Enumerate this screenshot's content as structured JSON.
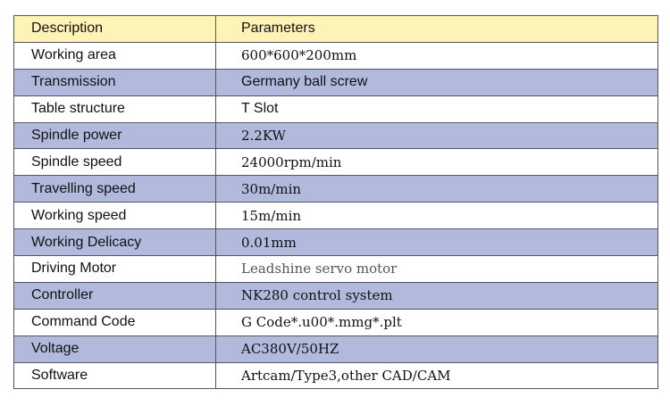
{
  "table": {
    "header": [
      "Description",
      "Parameters"
    ],
    "rows": [
      [
        "Working area",
        "600*600*200mm"
      ],
      [
        "Transmission",
        "Germany ball screw"
      ],
      [
        "Table structure",
        "T Slot"
      ],
      [
        "Spindle power",
        "2.2KW"
      ],
      [
        "Spindle speed",
        "24000rpm/min"
      ],
      [
        "Travelling speed",
        "30m/min"
      ],
      [
        "Working speed",
        "15m/min"
      ],
      [
        "Working Delicacy",
        "0.01mm"
      ],
      [
        "Driving Motor",
        "Leadshine servo motor"
      ],
      [
        "Controller",
        "NK280 control system"
      ],
      [
        "Command Code",
        "G Code*.u00*.mmg*.plt"
      ],
      [
        "Voltage",
        "AC380V/50HZ"
      ],
      [
        "Software",
        "Artcam/Type3,other CAD/CAM"
      ]
    ]
  }
}
